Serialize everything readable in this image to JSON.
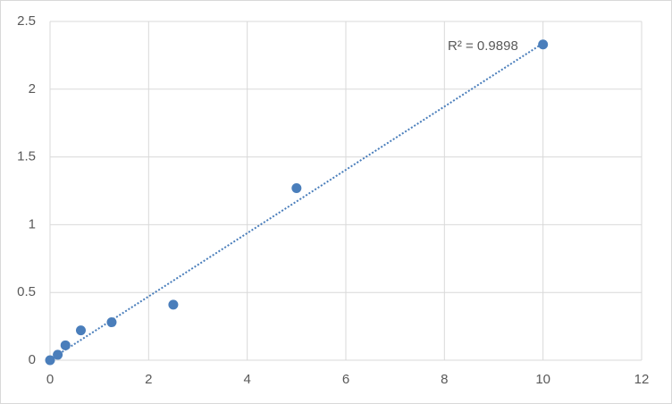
{
  "chart_data": {
    "type": "scatter",
    "x": [
      0,
      0.156,
      0.3125,
      0.625,
      1.25,
      2.5,
      5,
      10
    ],
    "values": [
      0,
      0.04,
      0.11,
      0.22,
      0.28,
      0.41,
      1.27,
      2.33
    ],
    "color": "#4a7ebb",
    "trendline": {
      "x": [
        0,
        10
      ],
      "y": [
        0.0035,
        2.339
      ],
      "color": "#4a7ebb"
    },
    "annotation": "R² = 0.9898",
    "xlim": [
      0,
      12
    ],
    "xticks": [
      0,
      2,
      4,
      6,
      8,
      10,
      12
    ],
    "ylim": [
      0,
      2.5
    ],
    "yticks": [
      0,
      0.5,
      1,
      1.5,
      2,
      2.5
    ],
    "grid": true
  }
}
